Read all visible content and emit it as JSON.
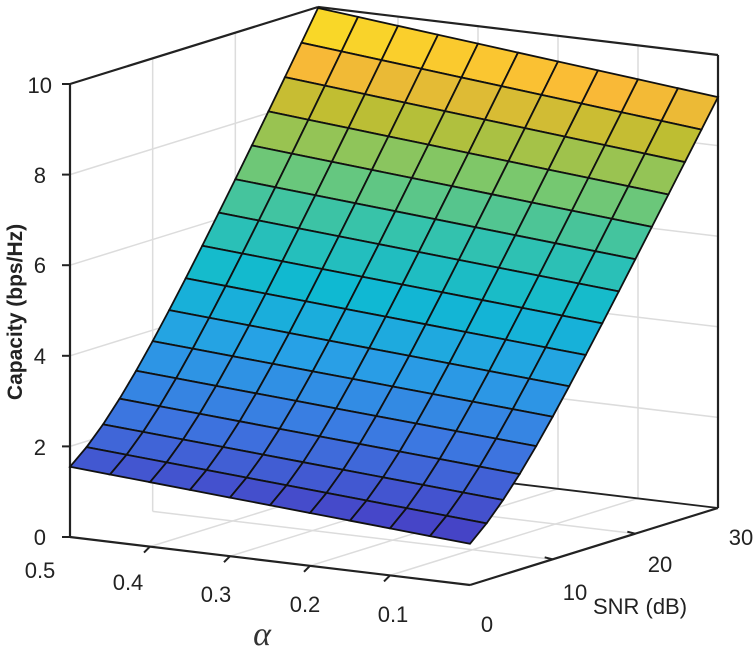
{
  "chart_data": {
    "type": "surface3d",
    "title": "",
    "zlabel": "Capacity (bps/Hz)",
    "xlabel": "α",
    "ylabel": "SNR (dB)",
    "x_axis": {
      "name": "alpha",
      "range": [
        0,
        0.5
      ],
      "ticks": [
        "0.5",
        "0.4",
        "0.3",
        "0.2",
        "0.1",
        "0"
      ]
    },
    "y_axis": {
      "name": "SNR (dB)",
      "range": [
        0,
        30
      ],
      "ticks": [
        "0",
        "10",
        "20",
        "30"
      ]
    },
    "z_axis": {
      "name": "Capacity (bps/Hz)",
      "range": [
        0,
        10
      ],
      "ticks": [
        "0",
        "2",
        "4",
        "6",
        "8",
        "10"
      ]
    },
    "grid": true,
    "colormap": "parula",
    "alpha": [
      0.5,
      0.45,
      0.4,
      0.35,
      0.3,
      0.25,
      0.2,
      0.15,
      0.1,
      0.05,
      0.0
    ],
    "snr_db": [
      0,
      2,
      4,
      6,
      8,
      10,
      12,
      14,
      16,
      18,
      20,
      22,
      24,
      26,
      28,
      30
    ],
    "capacity_corners": {
      "alpha_0.5_snr_0": 0.6,
      "alpha_0.5_snr_30": 10.0,
      "alpha_0_snr_0": 0.0,
      "alpha_0_snr_30": 9.1
    }
  },
  "labels": {
    "zlabel": "Capacity (bps/Hz)",
    "alpha": "α",
    "snr": "SNR (dB)",
    "z_ticks": [
      "0",
      "2",
      "4",
      "6",
      "8",
      "10"
    ],
    "alpha_ticks": [
      "0.5",
      "0.4",
      "0.3",
      "0.2",
      "0.1",
      "0"
    ],
    "snr_ticks": [
      "0",
      "10",
      "20",
      "30"
    ]
  }
}
